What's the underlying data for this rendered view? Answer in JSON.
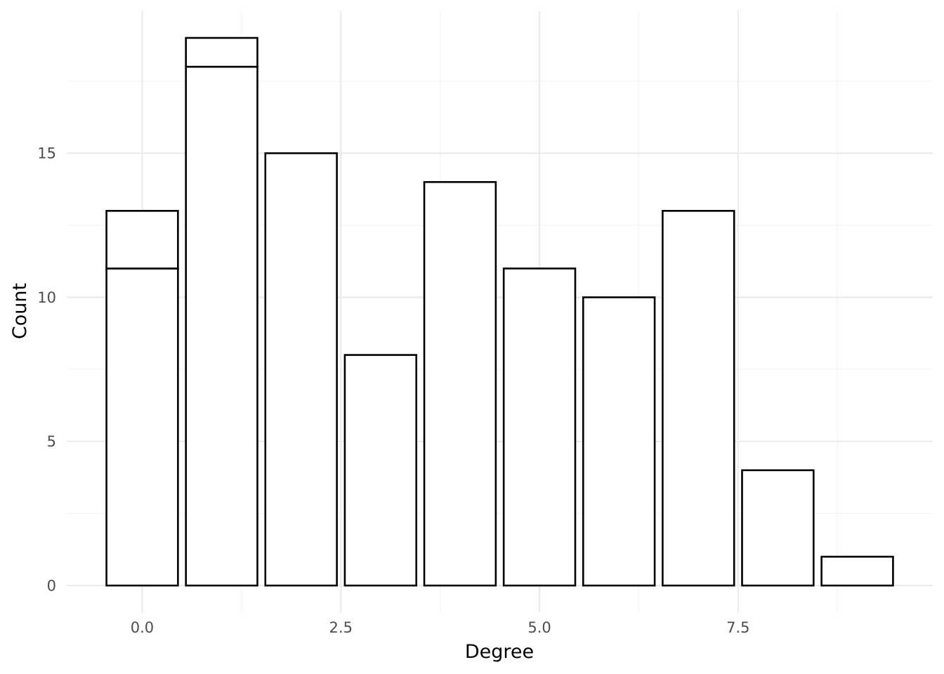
{
  "chart_data": {
    "type": "bar",
    "xlabel": "Degree",
    "ylabel": "Count",
    "xlim": [
      -0.95,
      9.95
    ],
    "ylim": [
      -0.95,
      19.95
    ],
    "x_ticks": [
      {
        "value": 0.0,
        "label": "0.0"
      },
      {
        "value": 2.5,
        "label": "2.5"
      },
      {
        "value": 5.0,
        "label": "5.0"
      },
      {
        "value": 7.5,
        "label": "7.5"
      }
    ],
    "y_ticks": [
      {
        "value": 0,
        "label": "0"
      },
      {
        "value": 5,
        "label": "5"
      },
      {
        "value": 10,
        "label": "10"
      },
      {
        "value": 15,
        "label": "15"
      }
    ],
    "bar_width": 0.9,
    "grid": true,
    "bars": [
      {
        "x": 0,
        "segments": [
          11,
          2
        ]
      },
      {
        "x": 1,
        "segments": [
          18,
          1
        ]
      },
      {
        "x": 2,
        "segments": [
          15
        ]
      },
      {
        "x": 3,
        "segments": [
          8
        ]
      },
      {
        "x": 4,
        "segments": [
          14
        ]
      },
      {
        "x": 5,
        "segments": [
          11
        ]
      },
      {
        "x": 6,
        "segments": [
          10
        ]
      },
      {
        "x": 7,
        "segments": [
          13
        ]
      },
      {
        "x": 8,
        "segments": [
          4
        ]
      },
      {
        "x": 9,
        "segments": [
          1
        ]
      }
    ]
  }
}
